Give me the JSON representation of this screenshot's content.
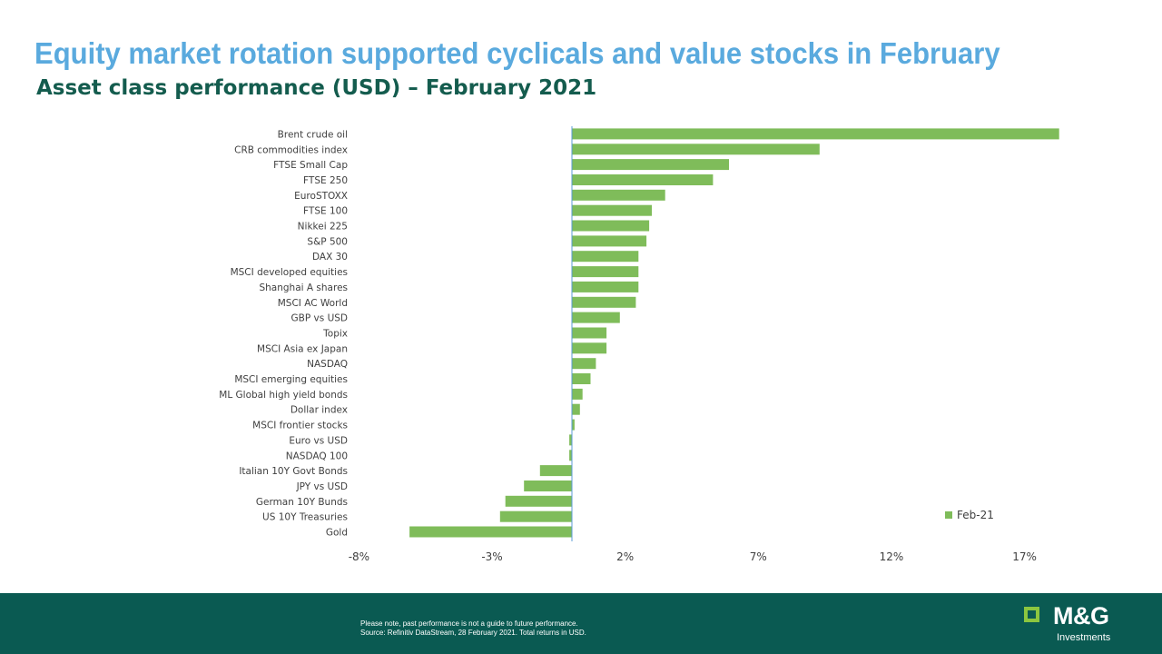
{
  "header": {
    "title": "Equity market rotation supported cyclicals and value stocks in February",
    "subtitle": "Asset class performance (USD) – February 2021"
  },
  "chart_data": {
    "type": "bar",
    "orientation": "horizontal",
    "categories": [
      "Brent crude oil",
      "CRB commodities index",
      "FTSE Small Cap",
      "FTSE 250",
      "EuroSTOXX",
      "FTSE 100",
      "Nikkei 225",
      "S&P 500",
      "DAX 30",
      "MSCI developed equities",
      "Shanghai A shares",
      "MSCI AC World",
      "GBP vs USD",
      "Topix",
      "MSCI Asia ex Japan",
      "NASDAQ",
      "MSCI emerging equities",
      "ML Global high yield bonds",
      "Dollar index",
      "MSCI frontier stocks",
      "Euro vs USD",
      "NASDAQ 100",
      "Italian 10Y Govt Bonds",
      "JPY vs USD",
      "German 10Y Bunds",
      "US 10Y Treasuries",
      "Gold"
    ],
    "series": [
      {
        "name": "Feb-21",
        "color": "#7fbc5a",
        "values": [
          18.3,
          9.3,
          5.9,
          5.3,
          3.5,
          3.0,
          2.9,
          2.8,
          2.5,
          2.5,
          2.5,
          2.4,
          1.8,
          1.3,
          1.3,
          0.9,
          0.7,
          0.4,
          0.3,
          0.1,
          -0.1,
          -0.1,
          -1.2,
          -1.8,
          -2.5,
          -2.7,
          -6.1
        ]
      }
    ],
    "x_ticks": [
      "-8%",
      "-3%",
      "2%",
      "7%",
      "12%",
      "17%"
    ],
    "x_tick_values": [
      -8,
      -3,
      2,
      7,
      12,
      17
    ],
    "xlim": [
      -8,
      18.5
    ],
    "grid": false,
    "legend_position": "bottom-right",
    "axis_color": "#5b9bd5"
  },
  "footer": {
    "disclaimer_line1": "Please note, past performance is not a guide to future performance.",
    "disclaimer_line2": "Source: Refinitiv DataStream, 28 February 2021. Total returns in USD.",
    "logo_text": "M&G",
    "logo_subtext": "Investments",
    "background_color": "#0a5a52",
    "logo_accent_color": "#8cc63f"
  }
}
